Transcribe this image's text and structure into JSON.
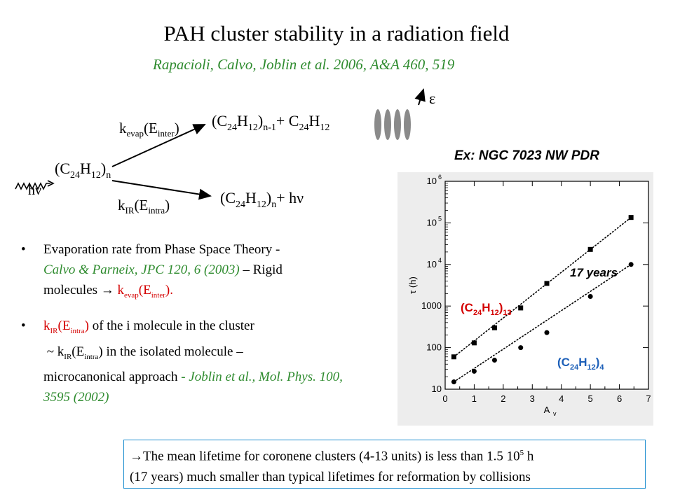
{
  "slide": {
    "title": "PAH cluster stability in a radiation field",
    "reference": "Rapacioli, Calvo, Joblin et al. 2006, A&A 460, 519"
  },
  "scheme": {
    "k_evap_label": "k",
    "k_evap_sub": "evap",
    "k_evap_arg": "(E",
    "k_evap_arg_sub": "inter",
    "k_evap_close": ")",
    "k_ir_label": "k",
    "k_ir_sub": "IR",
    "k_ir_arg": "(E",
    "k_ir_arg_sub": "intra",
    "k_ir_close": ")",
    "photon": "hν",
    "epsilon": "ε",
    "cluster_main": "(C",
    "sub_24": "24",
    "h_part": "H",
    "sub_12": "12",
    "close_paren": ")",
    "sub_n": "n",
    "sub_n1": "n-1",
    "plus_c24h12": "+ C",
    "plus_hv": "+ hν"
  },
  "bullets": {
    "b1_text": "Evaporation rate from Phase Space Theory -",
    "b1_ref": "Calvo & Parneix, JPC 120, 6 (2003)",
    "b1_rest": " – Rigid",
    "b1_line3": "molecules  ",
    "b1_arrow": "→",
    "b1_k": " k",
    "b1_k_sub": "evap",
    "b1_k_arg": "(E",
    "b1_k_arg_sub": "inter",
    "b1_k_close": ").",
    "b2_k": "k",
    "b2_k_sub": "IR",
    "b2_k_arg": "(E",
    "b2_k_arg_sub": "intra",
    "b2_k_close": ")",
    "b2_text": " of the i molecule in the cluster",
    "b2_line2_pre": "~ k",
    "b2_line2_sub": "IR",
    "b2_line2_arg": "(E",
    "b2_line2_arg_sub": "intra",
    "b2_line2_rest": ") in the isolated molecule –",
    "b2_line3": "microcanonical approach ",
    "b2_ref": " - Joblin et al., Mol. Phys. 100, 3595 (2002)"
  },
  "conclusion": {
    "arrow": "→",
    "line1": "The mean lifetime for coronene clusters (4-13 units) is less than 1.5 10",
    "sup": "5",
    "line1_end": " h",
    "line2": "(17 years) much smaller than typical lifetimes for reformation by collisions"
  },
  "chart_data": {
    "type": "scatter",
    "title": "Ex: NGC 7023 NW PDR",
    "xlabel": "A",
    "xlabel_sub": "v",
    "ylabel": "τ (h)",
    "xlim": [
      0,
      7
    ],
    "ylim": [
      10,
      1000000
    ],
    "yscale": "log",
    "x_ticks": [
      "0",
      "1",
      "2",
      "3",
      "4",
      "5",
      "6",
      "7"
    ],
    "y_ticks": [
      {
        "value": 10,
        "label": "10"
      },
      {
        "value": 100,
        "label": "100"
      },
      {
        "value": 1000,
        "label": "1000"
      },
      {
        "value": 10000,
        "label": "10",
        "exp": "4"
      },
      {
        "value": 100000,
        "label": "10",
        "exp": "5"
      },
      {
        "value": 1000000,
        "label": "10",
        "exp": "6"
      }
    ],
    "annotation": "17 years",
    "series": [
      {
        "name": "(C24H12)13",
        "label_main": "(C",
        "label_sub1": "24",
        "label_h": "H",
        "label_sub2": "12",
        "label_close": ")",
        "label_sub3": "13",
        "color": "#d40000",
        "marker": "square",
        "x": [
          0.3,
          1.0,
          1.7,
          2.6,
          3.5,
          5.0,
          6.4
        ],
        "y": [
          60,
          130,
          300,
          900,
          3500,
          23000,
          135000
        ]
      },
      {
        "name": "(C24H12)4",
        "label_main": "(C",
        "label_sub1": "24",
        "label_h": "H",
        "label_sub2": "12",
        "label_close": ")",
        "label_sub3": "4",
        "color": "#1c5fb8",
        "marker": "circle",
        "x": [
          0.3,
          1.0,
          1.7,
          2.6,
          3.5,
          5.0,
          6.4
        ],
        "y": [
          15,
          27,
          50,
          100,
          230,
          1700,
          10000
        ]
      }
    ]
  }
}
